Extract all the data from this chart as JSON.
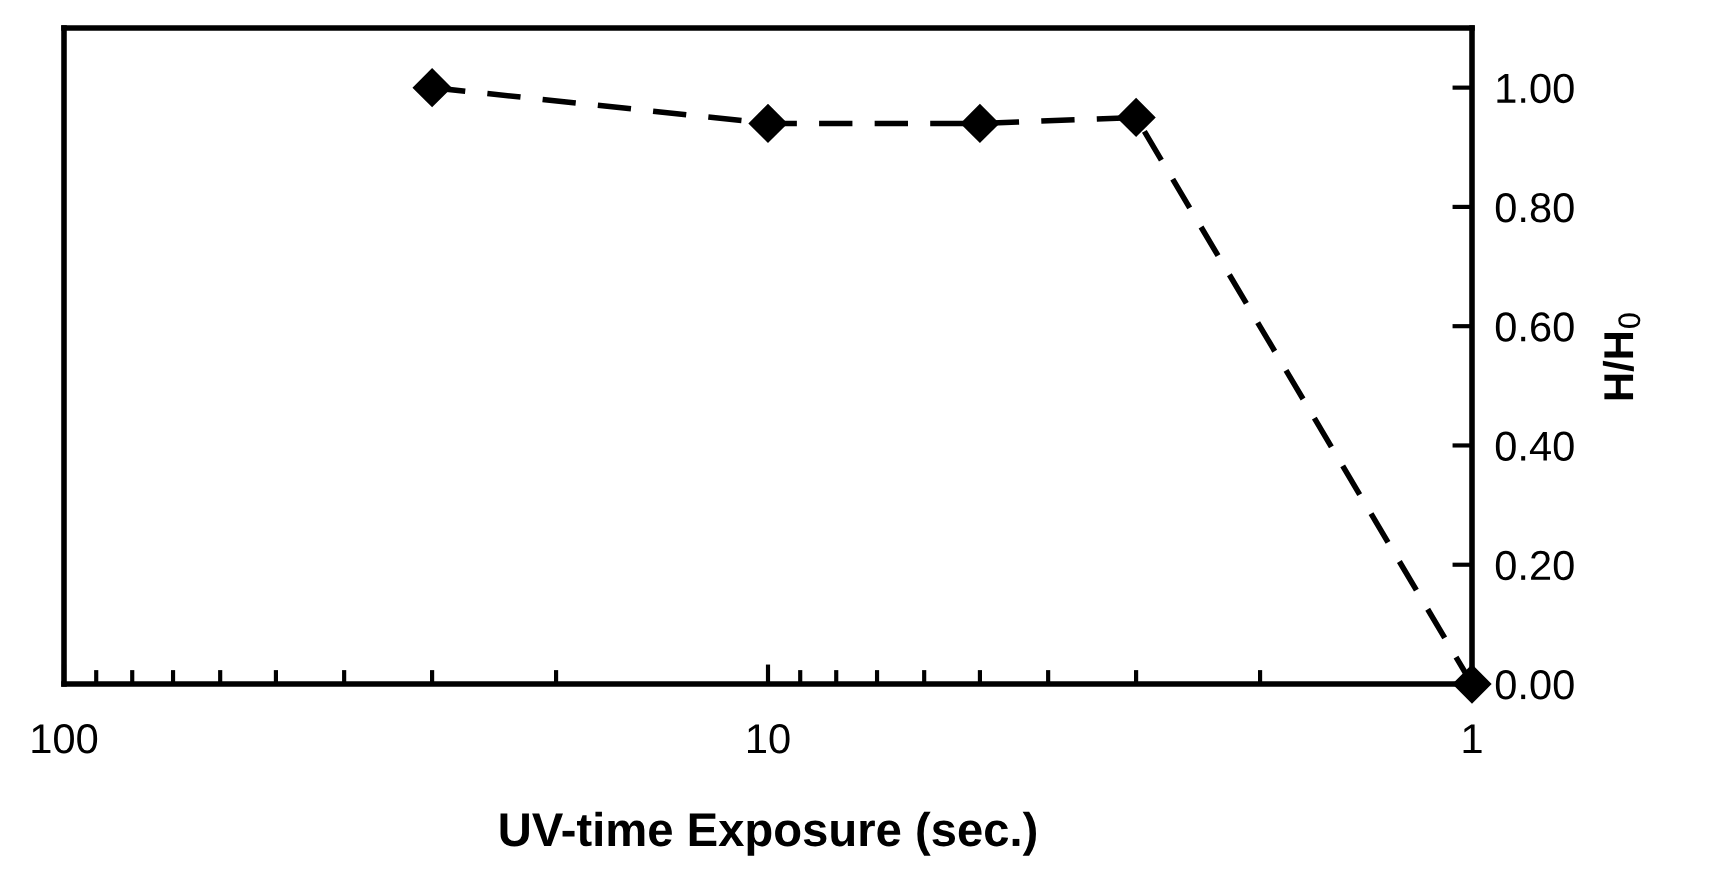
{
  "chart_data": {
    "type": "line",
    "xlabel": "UV-time Exposure (sec.)",
    "ylabel": "H/H$_{0}$",
    "log": "x",
    "x": [
      30,
      10,
      5,
      3,
      1
    ],
    "series": [
      {
        "color": "#000000",
        "values": [
          1.0,
          0.94,
          0.94,
          0.95,
          0.0
        ]
      }
    ],
    "xlim": [
      100,
      1
    ],
    "xticks": [
      100,
      10,
      1
    ],
    "ylim": [
      0,
      1.1
    ],
    "yticks": [
      {
        "value": 0,
        "label": "0.00"
      },
      {
        "value": 0.2,
        "label": "0.20"
      },
      {
        "value": 0.4,
        "label": "0.40"
      },
      {
        "value": 0.6,
        "label": "0.60"
      },
      {
        "value": 0.8,
        "label": "0.80"
      },
      {
        "value": 1.0,
        "label": "1.00"
      }
    ],
    "grid": false,
    "legend": false,
    "marker": "diamond",
    "line_style": "dashed"
  }
}
